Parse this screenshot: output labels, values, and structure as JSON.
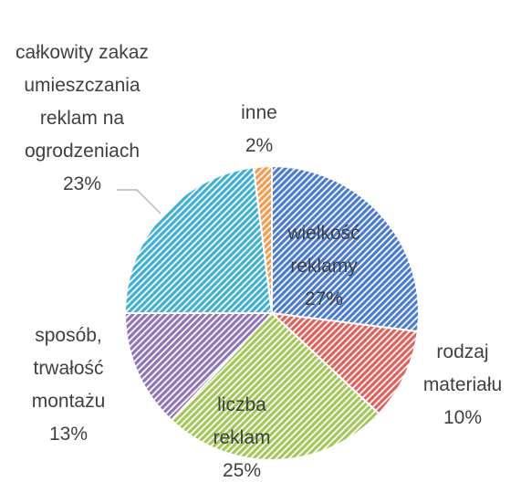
{
  "chart_data": {
    "type": "pie",
    "categories": [
      "wielkość reklamy",
      "rodzaj materiału",
      "liczba reklam",
      "sposób, trwałość montażu",
      "całkowity zakaz umieszczania reklam na ogrodzeniach",
      "inne"
    ],
    "values": [
      27,
      10,
      25,
      13,
      23,
      2
    ],
    "value_labels": [
      "27%",
      "10%",
      "25%",
      "13%",
      "23%",
      "2%"
    ],
    "colors": [
      "#4a7bd0",
      "#e0605c",
      "#a4c65a",
      "#8f74b8",
      "#3fb0d2",
      "#f5994a"
    ]
  }
}
